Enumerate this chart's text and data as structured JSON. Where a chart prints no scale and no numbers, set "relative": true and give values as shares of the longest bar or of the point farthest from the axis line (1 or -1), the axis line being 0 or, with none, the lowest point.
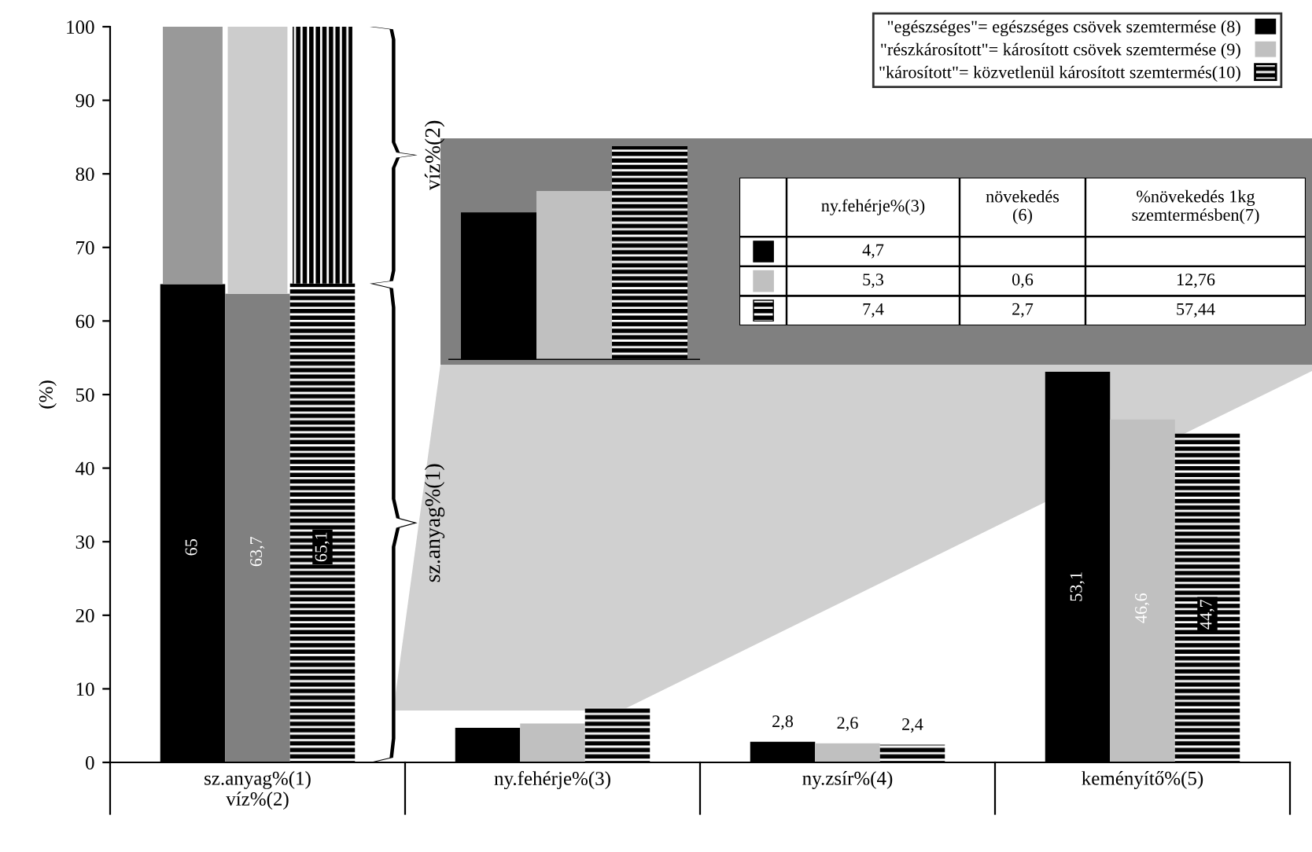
{
  "chart_data": [
    {
      "type": "bar",
      "categories": [
        "sz.anyag%(1)\nvíz%(2)",
        "ny.fehérje%(3)",
        "ny.zsír%(4)",
        "keményítő%(5)"
      ],
      "ylabel": "(%)",
      "ylim": [
        0,
        100
      ],
      "yticks": [
        0,
        10,
        20,
        30,
        40,
        50,
        60,
        70,
        80,
        90,
        100
      ],
      "legend": "top right",
      "annotations": [
        "víz%(2)",
        "sz.anyag%(1)"
      ],
      "series": [
        {
          "name": "\"egészséges\"= egészséges csövek szemtermése (8)",
          "color": "#000000",
          "values": [
            65,
            4.7,
            2.8,
            53.1
          ],
          "value_labels": [
            "65",
            null,
            "2,8",
            "53,1"
          ]
        },
        {
          "name": "\"részkárosított\"= károsított csövek szemtermése (9)",
          "color": "#c0c0c0",
          "colors": [
            "#808080",
            "#c0c0c0",
            "#c0c0c0",
            "#c0c0c0"
          ],
          "values": [
            63.7,
            5.3,
            2.6,
            46.6
          ],
          "value_labels": [
            "63,7",
            null,
            "2,6",
            "46,6"
          ]
        },
        {
          "name": "\"károsított\"= közvetlenül károsított szemtermés(10)",
          "color": "#000000",
          "values": [
            65.1,
            7.4,
            2.4,
            44.7
          ],
          "value_labels": [
            "65,1",
            null,
            "2,4",
            "44,7"
          ]
        },
        {
          "color": "#999999",
          "values": [
            35,
            null,
            null,
            null
          ],
          "base": [
            65,
            null,
            null,
            null
          ]
        },
        {
          "color": "#cccccc",
          "values": [
            36.3,
            null,
            null,
            null
          ],
          "base": [
            63.7,
            null,
            null,
            null
          ]
        },
        {
          "color": "#000000",
          "values": [
            34.9,
            null,
            null,
            null
          ],
          "base": [
            65.1,
            null,
            null,
            null
          ]
        }
      ]
    },
    {
      "type": "bar",
      "relative": true,
      "categories": [
        null
      ],
      "annotations": [
        "ny.fehérje%(3)",
        "növekedés\n(6)",
        "%növekedés 1kg\nszemtermésben(7)",
        "4,7",
        "5,3",
        "0,6",
        "12,76",
        "7,4",
        "2,7",
        "57,44"
      ],
      "series": [
        {
          "color": "#000000",
          "values": [
            0.69
          ]
        },
        {
          "color": "#c0c0c0",
          "values": [
            0.79
          ]
        },
        {
          "color": "#000000",
          "values": [
            1
          ]
        }
      ]
    }
  ]
}
